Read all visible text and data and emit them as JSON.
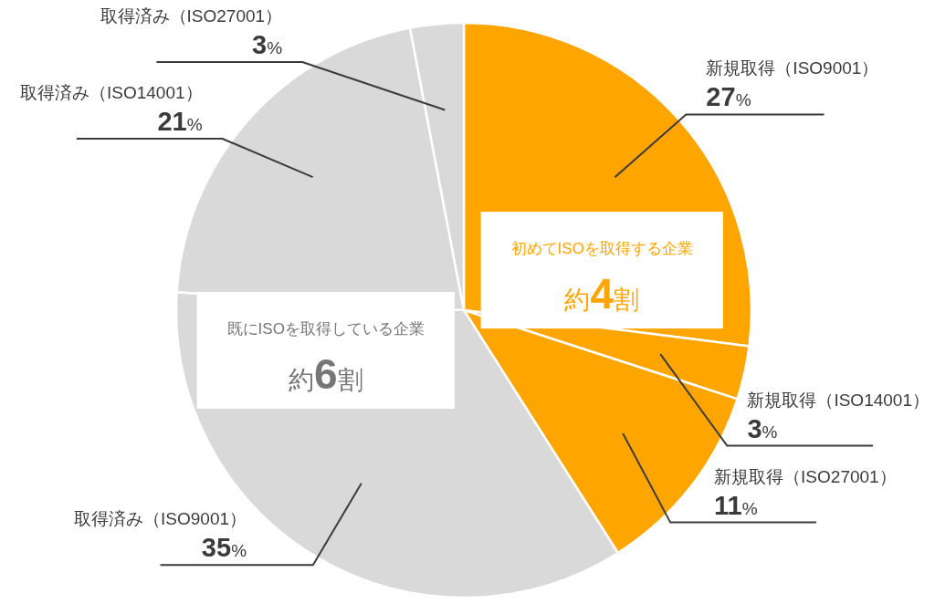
{
  "chart_data": {
    "type": "pie",
    "categories": [
      "新規取得（ISO9001）",
      "新規取得（ISO14001）",
      "新規取得（ISO27001）",
      "取得済み（ISO9001）",
      "取得済み（ISO14001）",
      "取得済み（ISO27001）"
    ],
    "values": [
      27,
      3,
      11,
      35,
      21,
      3
    ],
    "colors": [
      "#ffa500",
      "#ffa500",
      "#ffa500",
      "#d9d9d9",
      "#d9d9d9",
      "#d9d9d9"
    ],
    "value_labels": [
      "27%",
      "3%",
      "11%",
      "35%",
      "21%",
      "3%"
    ],
    "annotations": [
      "初めてISOを取得する企業",
      "約4割",
      "既にISOを取得している企業",
      "約6割"
    ]
  }
}
